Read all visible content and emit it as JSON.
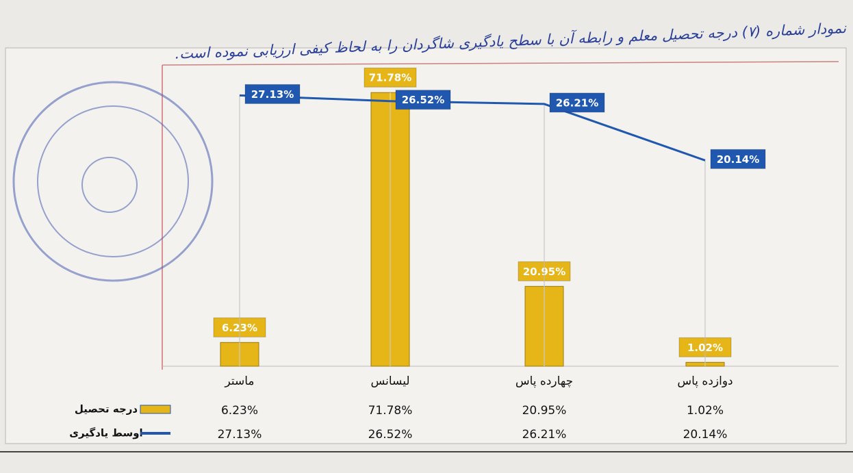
{
  "chart_data": {
    "type": "bar",
    "title": "نمودار شماره (۷) درجه تحصیل معلم و رابطه آن با سطح یادگیری شاگردان را به لحاظ کیفی ارزیابی نموده است.",
    "categories": [
      "ماستر",
      "لیسانس",
      "چهارده پاس",
      "دوازده پاس"
    ],
    "series": [
      {
        "name": "درجه تحصیل",
        "type": "bar",
        "color": "#e6b517",
        "values": [
          6.23,
          71.78,
          20.95,
          1.02
        ],
        "value_labels": [
          "6.23%",
          "71.78%",
          "20.95%",
          "1.02%"
        ]
      },
      {
        "name": "اوسط یادگیری",
        "type": "line",
        "axis": "y2",
        "color": "#2058b0",
        "values": [
          27.13,
          26.52,
          26.21,
          20.14
        ],
        "value_labels": [
          "27.13%",
          "26.52%",
          "26.21%",
          "20.14%"
        ]
      }
    ],
    "ylim": [
      0,
      79
    ],
    "y2lim": [
      -2,
      30.4
    ]
  }
}
